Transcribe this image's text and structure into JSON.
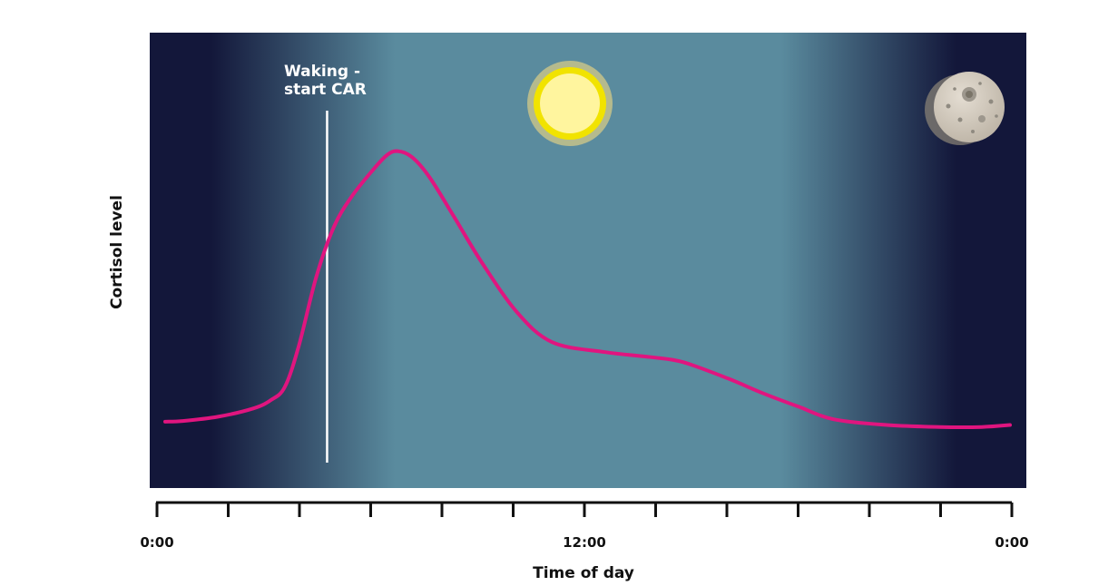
{
  "chart_data": {
    "type": "line",
    "title": "",
    "xlabel": "Time of day",
    "ylabel": "Cortisol level",
    "x_ticks_count": 13,
    "x_tick_labels": [
      {
        "hour": 0,
        "label": "0:00"
      },
      {
        "hour": 12,
        "label": "12:00"
      },
      {
        "hour": 24,
        "label": "0:00"
      }
    ],
    "xlim": [
      0,
      24
    ],
    "ylim": [
      0,
      100
    ],
    "grid": false,
    "series": [
      {
        "color": "#e0157f",
        "x": [
          0.0,
          0.5,
          1.5,
          2.5,
          3.0,
          3.4,
          3.8,
          4.3,
          4.8,
          5.3,
          5.9,
          6.3,
          6.6,
          7.0,
          7.5,
          8.2,
          9.0,
          10.0,
          11.0,
          12.5,
          13.8,
          14.7,
          16.0,
          17.0,
          18.0,
          19.0,
          20.5,
          22.0,
          23.2,
          24.0
        ],
        "y": [
          11.0,
          11.2,
          12.5,
          15.0,
          17.5,
          21.5,
          34.0,
          55.0,
          70.0,
          79.0,
          87.0,
          91.5,
          92.7,
          91.0,
          85.0,
          73.0,
          59.0,
          44.0,
          35.0,
          32.0,
          30.5,
          29.0,
          24.0,
          19.5,
          15.5,
          11.7,
          10.0,
          9.4,
          9.4,
          10.0
        ]
      }
    ],
    "annotations": {
      "waking_label_lines": [
        "Waking -",
        "start CAR"
      ],
      "waking_hour": 4.6
    },
    "background": {
      "night_color": "#13173a",
      "day_color": "#5a8b9e"
    },
    "icons": [
      "sun-icon",
      "moon-icon"
    ]
  }
}
